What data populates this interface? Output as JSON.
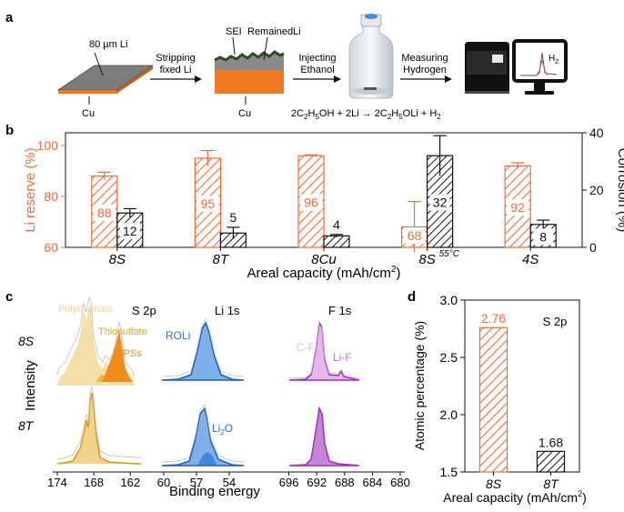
{
  "colors": {
    "orange": "#f26b3a",
    "orange_dark": "#e8642c",
    "black": "#111111",
    "sulfur_light": "#f5dfa8",
    "sulfur_mid": "#e8b84a",
    "sulfur_dark": "#f08c1a",
    "li_blue": "#2a6fd1",
    "li_fill": "#7fb0ea",
    "f_purple": "#a42bb8",
    "f_fill": "#e6b7ee",
    "copper": "#f07a22",
    "slab_grey": "#8a8a8a"
  },
  "panel_a": {
    "letter": "a",
    "foil_label": "80 µm Li",
    "cu_label_1": "Cu",
    "step1_line1": "Stripping",
    "step1_line2": "fixed Li",
    "sei_label": "SEI",
    "remained_label": "Remained",
    "li_label": "Li",
    "cu_label_2": "Cu",
    "step2_line1": "Injecting",
    "step2_line2": "Ethanol",
    "step3_line1": "Measuring",
    "step3_line2": "Hydrogen",
    "h2_label": "H",
    "h2_sub": "2",
    "eq_part1": "2C",
    "eq_sub1": "2",
    "eq_part2": "H",
    "eq_sub2": "5",
    "eq_part3": "OH + 2Li → 2C",
    "eq_sub3": "2",
    "eq_part4": "H",
    "eq_sub4": "5",
    "eq_part5": "OLi + H",
    "eq_sub5": "2",
    "icon_vial": "vial-icon",
    "icon_device": "gas-analyzer-icon",
    "icon_monitor": "monitor-icon"
  },
  "chart_data": [
    {
      "type": "bar",
      "panel": "b",
      "letter": "b",
      "categories": [
        "8S",
        "8T",
        "8Cu",
        "8S",
        "4S"
      ],
      "category_superscripts": [
        "",
        "",
        "",
        "55°C",
        ""
      ],
      "series": [
        {
          "name": "Li reserve",
          "axis": "left",
          "values": [
            88,
            95,
            96,
            68,
            92
          ],
          "errors": [
            1.5,
            3,
            0.3,
            10,
            1.2
          ],
          "labels": [
            "88",
            "95",
            "96",
            "68",
            "92"
          ]
        },
        {
          "name": "Corrosion",
          "axis": "right",
          "values": [
            12,
            5,
            4,
            32,
            8
          ],
          "errors": [
            1.5,
            2,
            0.5,
            7,
            1.5
          ],
          "labels": [
            "12",
            "5",
            "4",
            "32",
            "8"
          ]
        }
      ],
      "ylabel": "Li reserve (%)",
      "ylim": [
        60,
        105
      ],
      "yticks": [
        "60",
        "80",
        "100"
      ],
      "y2label": "Corrosion (%)",
      "y2lim": [
        0,
        40
      ],
      "y2ticks": [
        "0",
        "20",
        "40"
      ],
      "xlabel": "Areal capacity (mAh/cm",
      "xlabel_sup": "2",
      "xlabel_end": ")"
    },
    {
      "type": "line",
      "panel": "c",
      "letter": "c",
      "ylabel": "Intensity",
      "xlabel": "Binding energy",
      "rows": [
        "8S",
        "8T"
      ],
      "subplots": [
        {
          "title": "S 2p",
          "xlim": [
            174,
            158
          ],
          "xticks": [
            "174",
            "168",
            "162"
          ],
          "components": [
            "Polythionate",
            "Thiosulfate",
            "LiPSs"
          ]
        },
        {
          "title": "Li 1s",
          "xlim": [
            60,
            50
          ],
          "xticks": [
            "60",
            "57",
            "54"
          ],
          "components": [
            "ROLi",
            "Li",
            "O"
          ],
          "li2o_sub": "2"
        },
        {
          "title": "F 1s",
          "xlim": [
            697,
            680
          ],
          "xticks": [
            "696",
            "692",
            "688",
            "684",
            "680"
          ],
          "components": [
            "C-F",
            "Li-F"
          ]
        }
      ]
    },
    {
      "type": "bar",
      "panel": "d",
      "letter": "d",
      "title": "S 2p",
      "categories": [
        "8S",
        "8T"
      ],
      "values": [
        2.76,
        1.68
      ],
      "labels": [
        "2.76",
        "1.68"
      ],
      "ylabel": "Atomic percentage (%)",
      "ylim": [
        1.5,
        3.0
      ],
      "yticks": [
        "1.5",
        "2.0",
        "2.5",
        "3.0"
      ],
      "xlabel": "Areal capacity (mAh/cm",
      "xlabel_sup": "2",
      "xlabel_end": ")"
    }
  ]
}
